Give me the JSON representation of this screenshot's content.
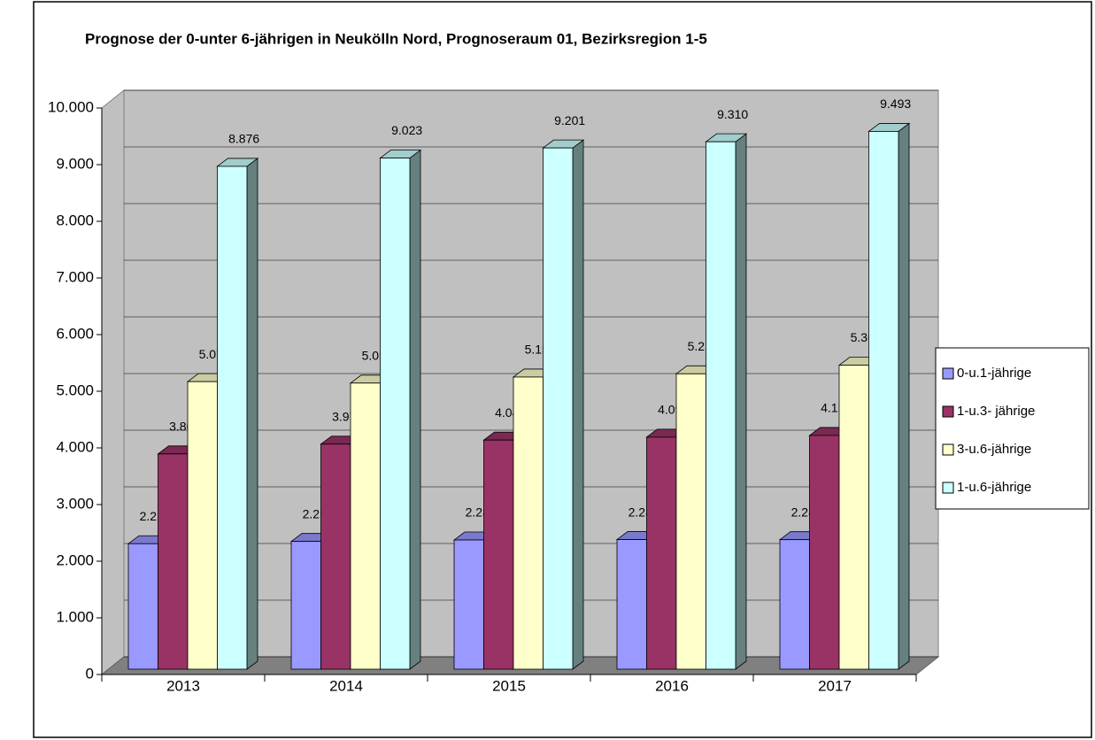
{
  "chart_data": {
    "type": "bar3d",
    "title": "Prognose der 0-unter 6-jährigen in Neukölln Nord, Prognoseraum 01, Bezirksregion 1-5",
    "categories": [
      "2013",
      "2014",
      "2015",
      "2016",
      "2017"
    ],
    "series": [
      {
        "name": "0-u.1-jährige",
        "color": "#9999ff",
        "values": [
          2215,
          2255,
          2281,
          2288,
          2286
        ],
        "value_labels": [
          "2.215",
          "2.255",
          "2.281",
          "2.288",
          "2.286"
        ]
      },
      {
        "name": "1-u.3- jährige",
        "color": "#993366",
        "values": [
          3800,
          3973,
          4044,
          4096,
          4126
        ],
        "value_labels": [
          "3.800",
          "3.973",
          "4.044",
          "4.096",
          "4.126"
        ]
      },
      {
        "name": "3-u.6-jährige",
        "color": "#ffffcc",
        "values": [
          5076,
          5050,
          5157,
          5214,
          5367
        ],
        "value_labels": [
          "5.076",
          "5.050",
          "5.157",
          "5.214",
          "5.367"
        ]
      },
      {
        "name": "1-u.6-jährige",
        "color": "#ccffff",
        "values": [
          8876,
          9023,
          9201,
          9310,
          9493
        ],
        "value_labels": [
          "8.876",
          "9.023",
          "9.201",
          "9.310",
          "9.493"
        ]
      }
    ],
    "ylim": [
      0,
      10000
    ],
    "yticks": [
      0,
      {
        "value": 1000,
        "label": "1.000"
      },
      {
        "value": 2000,
        "label": "2.000"
      },
      {
        "value": 3000,
        "label": "3.000"
      },
      {
        "value": 4000,
        "label": "4.000"
      },
      {
        "value": 5000,
        "label": "5.000"
      },
      {
        "value": 6000,
        "label": "6.000"
      },
      {
        "value": 7000,
        "label": "7.000"
      },
      {
        "value": 8000,
        "label": "8.000"
      },
      {
        "value": 9000,
        "label": "9.000"
      },
      {
        "value": 10000,
        "label": "10.000"
      }
    ],
    "grid": true,
    "legend": "right"
  }
}
